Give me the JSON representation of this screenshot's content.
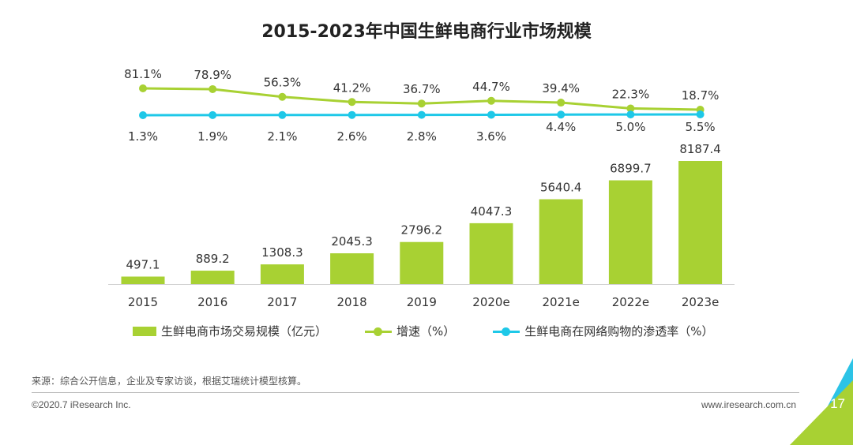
{
  "title": "2015-2023年中国生鲜电商行业市场规模",
  "chart_data": {
    "type": "bar",
    "categories": [
      "2015",
      "2016",
      "2017",
      "2018",
      "2019",
      "2020e",
      "2021e",
      "2022e",
      "2023e"
    ],
    "series": [
      {
        "name": "生鲜电商市场交易规模（亿元）",
        "kind": "bar",
        "values": [
          497.1,
          889.2,
          1308.3,
          2045.3,
          2796.2,
          4047.3,
          5640.4,
          6899.7,
          8187.4
        ],
        "labels": [
          "497.1",
          "889.2",
          "1308.3",
          "2045.3",
          "2796.2",
          "4047.3",
          "5640.4",
          "6899.7",
          "8187.4"
        ]
      },
      {
        "name": "增速（%）",
        "kind": "line",
        "values": [
          81.1,
          78.9,
          56.3,
          41.2,
          36.7,
          44.7,
          39.4,
          22.3,
          18.7
        ],
        "labels": [
          "81.1%",
          "78.9%",
          "56.3%",
          "41.2%",
          "36.7%",
          "44.7%",
          "39.4%",
          "22.3%",
          "18.7%"
        ]
      },
      {
        "name": "生鲜电商在网络购物的渗透率（%）",
        "kind": "line",
        "values": [
          1.3,
          1.9,
          2.1,
          2.6,
          2.8,
          3.6,
          4.4,
          5.0,
          5.5
        ],
        "labels": [
          "1.3%",
          "1.9%",
          "2.1%",
          "2.6%",
          "2.8%",
          "3.6%",
          "4.4%",
          "5.0%",
          "5.5%"
        ]
      }
    ],
    "colors": {
      "bar": "#a8d133",
      "growth": "#a8d133",
      "penetration": "#1ec8e8"
    },
    "legend_position": "bottom",
    "grid": false
  },
  "footer": {
    "source": "来源：综合公开信息，企业及专家访谈，根据艾瑞统计模型核算。",
    "copyright": "©2020.7 iResearch Inc.",
    "website": "www.iresearch.com.cn",
    "page_number": "17"
  }
}
